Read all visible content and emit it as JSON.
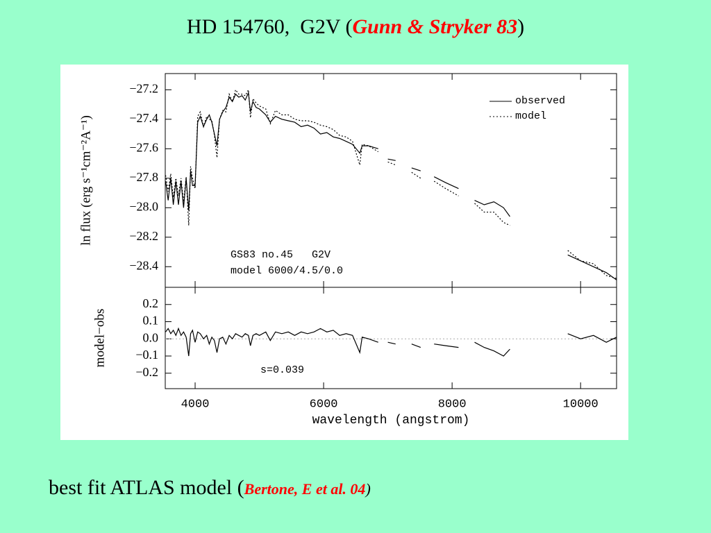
{
  "title": {
    "text": "HD 154760,  G2V (",
    "citation": "Gunn & Stryker 83",
    "close": ")"
  },
  "caption": {
    "text": "best fit ATLAS model (",
    "citation": "Bertone, E et al. 04",
    "close": ")"
  },
  "chart_data": [
    {
      "type": "line",
      "ylabel": "ln flux (erg s⁻¹cm⁻²A⁻¹)",
      "xlim": [
        3535,
        10560
      ],
      "ylim": [
        -28.54,
        -27.09
      ],
      "yticks": [
        {
          "value": -27.2,
          "label": "−27.2"
        },
        {
          "value": -27.4,
          "label": "−27.4"
        },
        {
          "value": -27.6,
          "label": "−27.6"
        },
        {
          "value": -27.8,
          "label": "−27.8"
        },
        {
          "value": -28.0,
          "label": "−28.0"
        },
        {
          "value": -28.2,
          "label": "−28.2"
        },
        {
          "value": -28.4,
          "label": "−28.4"
        }
      ],
      "legend": "upper right",
      "annotations": [
        "GS83 no.45   G2V",
        "model 6000/4.5/0.0"
      ],
      "x": [
        3540,
        3580,
        3620,
        3660,
        3700,
        3740,
        3780,
        3820,
        3860,
        3900,
        3930,
        3960,
        4000,
        4040,
        4080,
        4130,
        4180,
        4220,
        4260,
        4300,
        4340,
        4380,
        4430,
        4480,
        4530,
        4580,
        4630,
        4680,
        4730,
        4780,
        4830,
        4861,
        4900,
        4950,
        5000,
        5100,
        5170,
        5250,
        5350,
        5450,
        5550,
        5650,
        5750,
        5850,
        5950,
        6050,
        6150,
        6250,
        6350,
        6450,
        6563,
        6600,
        6700,
        6850,
        6920,
        7000,
        7120,
        7250,
        7370,
        7510,
        7600,
        7720,
        7900,
        8100,
        8200,
        8350,
        8500,
        8650,
        8800,
        8900,
        9400,
        9800,
        10000,
        10200,
        10400,
        10560
      ],
      "series": [
        {
          "name": "observed",
          "color": "#000000",
          "style": "solid",
          "values": [
            -27.82,
            -27.95,
            -27.8,
            -27.98,
            -27.82,
            -27.98,
            -27.82,
            -28.0,
            -27.8,
            -28.02,
            -27.75,
            -27.85,
            -27.85,
            -27.42,
            -27.38,
            -27.45,
            -27.4,
            -27.37,
            -27.42,
            -27.5,
            -27.58,
            -27.4,
            -27.35,
            -27.32,
            -27.25,
            -27.28,
            -27.23,
            -27.25,
            -27.24,
            -27.27,
            -27.22,
            -27.35,
            -27.28,
            -27.32,
            -27.33,
            -27.37,
            -27.42,
            -27.38,
            -27.4,
            -27.41,
            -27.42,
            -27.45,
            -27.44,
            -27.46,
            -27.5,
            -27.49,
            -27.52,
            -27.53,
            -27.55,
            -27.57,
            -27.63,
            -27.58,
            -27.58,
            -27.6,
            null,
            -27.67,
            -27.68,
            null,
            -27.73,
            -27.75,
            null,
            -27.79,
            -27.83,
            -27.87,
            null,
            -27.95,
            -27.98,
            -27.96,
            -28.0,
            -28.06,
            null,
            -28.32,
            -28.36,
            -28.4,
            -28.44,
            -28.49
          ]
        },
        {
          "name": "model",
          "color": "#000000",
          "style": "dotted",
          "values": [
            -27.78,
            -27.89,
            -27.77,
            -27.93,
            -27.8,
            -27.92,
            -27.8,
            -27.96,
            -27.79,
            -28.12,
            -27.72,
            -27.8,
            -27.87,
            -27.38,
            -27.35,
            -27.45,
            -27.38,
            -27.4,
            -27.41,
            -27.51,
            -27.66,
            -27.4,
            -27.34,
            -27.35,
            -27.23,
            -27.28,
            -27.2,
            -27.23,
            -27.23,
            -27.24,
            -27.2,
            -27.39,
            -27.26,
            -27.29,
            -27.31,
            -27.33,
            -27.43,
            -27.34,
            -27.37,
            -27.37,
            -27.4,
            -27.41,
            -27.41,
            -27.42,
            -27.44,
            -27.45,
            -27.47,
            -27.51,
            -27.52,
            -27.55,
            -27.71,
            -27.57,
            -27.58,
            -27.62,
            null,
            -27.69,
            -27.71,
            null,
            -27.76,
            -27.8,
            null,
            -27.82,
            -27.87,
            -27.92,
            null,
            -27.97,
            -28.03,
            -28.03,
            -28.1,
            -28.12,
            null,
            -28.29,
            -28.36,
            -28.38,
            -28.46,
            -28.48
          ]
        }
      ]
    },
    {
      "type": "line",
      "ylabel": "model−obs",
      "xlabel": "wavelength (angstrom)",
      "xlim": [
        3535,
        10560
      ],
      "xticks": [
        4000,
        6000,
        8000,
        10000
      ],
      "ylim": [
        -0.29,
        0.3
      ],
      "yticks": [
        {
          "value": 0.2,
          "label": "0.2"
        },
        {
          "value": 0.1,
          "label": "0.1"
        },
        {
          "value": 0.0,
          "label": "0.0"
        },
        {
          "value": -0.1,
          "label": "−0.1"
        },
        {
          "value": -0.2,
          "label": "−0.2"
        }
      ],
      "zero_line": true,
      "annotations": [
        "s=0.039"
      ],
      "x": [
        3540,
        3580,
        3620,
        3660,
        3700,
        3740,
        3780,
        3820,
        3860,
        3900,
        3930,
        3960,
        4000,
        4040,
        4080,
        4130,
        4180,
        4220,
        4260,
        4300,
        4340,
        4380,
        4430,
        4480,
        4530,
        4580,
        4630,
        4680,
        4730,
        4780,
        4830,
        4861,
        4900,
        4950,
        5000,
        5100,
        5170,
        5250,
        5350,
        5450,
        5550,
        5650,
        5750,
        5850,
        5950,
        6050,
        6150,
        6250,
        6350,
        6450,
        6563,
        6600,
        6700,
        6850,
        6920,
        7000,
        7120,
        7250,
        7370,
        7510,
        7600,
        7720,
        7900,
        8100,
        8200,
        8350,
        8500,
        8650,
        8800,
        8900,
        9400,
        9800,
        10000,
        10200,
        10400,
        10560
      ],
      "color": "#000000",
      "values": [
        0.04,
        0.06,
        0.03,
        0.05,
        0.02,
        0.06,
        0.02,
        0.04,
        0.01,
        -0.1,
        0.03,
        0.05,
        -0.02,
        0.04,
        0.03,
        0.0,
        0.02,
        -0.03,
        0.01,
        -0.01,
        -0.08,
        0.0,
        0.01,
        -0.03,
        0.02,
        0.0,
        0.03,
        0.02,
        0.01,
        0.03,
        0.02,
        -0.04,
        0.02,
        0.03,
        0.02,
        0.04,
        -0.01,
        0.04,
        0.03,
        0.04,
        0.02,
        0.04,
        0.03,
        0.04,
        0.06,
        0.04,
        0.05,
        0.02,
        0.03,
        0.02,
        -0.08,
        0.01,
        0.0,
        -0.02,
        null,
        -0.02,
        -0.03,
        null,
        -0.03,
        -0.05,
        null,
        -0.03,
        -0.04,
        -0.05,
        null,
        -0.02,
        -0.05,
        -0.07,
        -0.1,
        -0.06,
        null,
        0.03,
        0.0,
        0.02,
        -0.02,
        0.01
      ]
    }
  ]
}
